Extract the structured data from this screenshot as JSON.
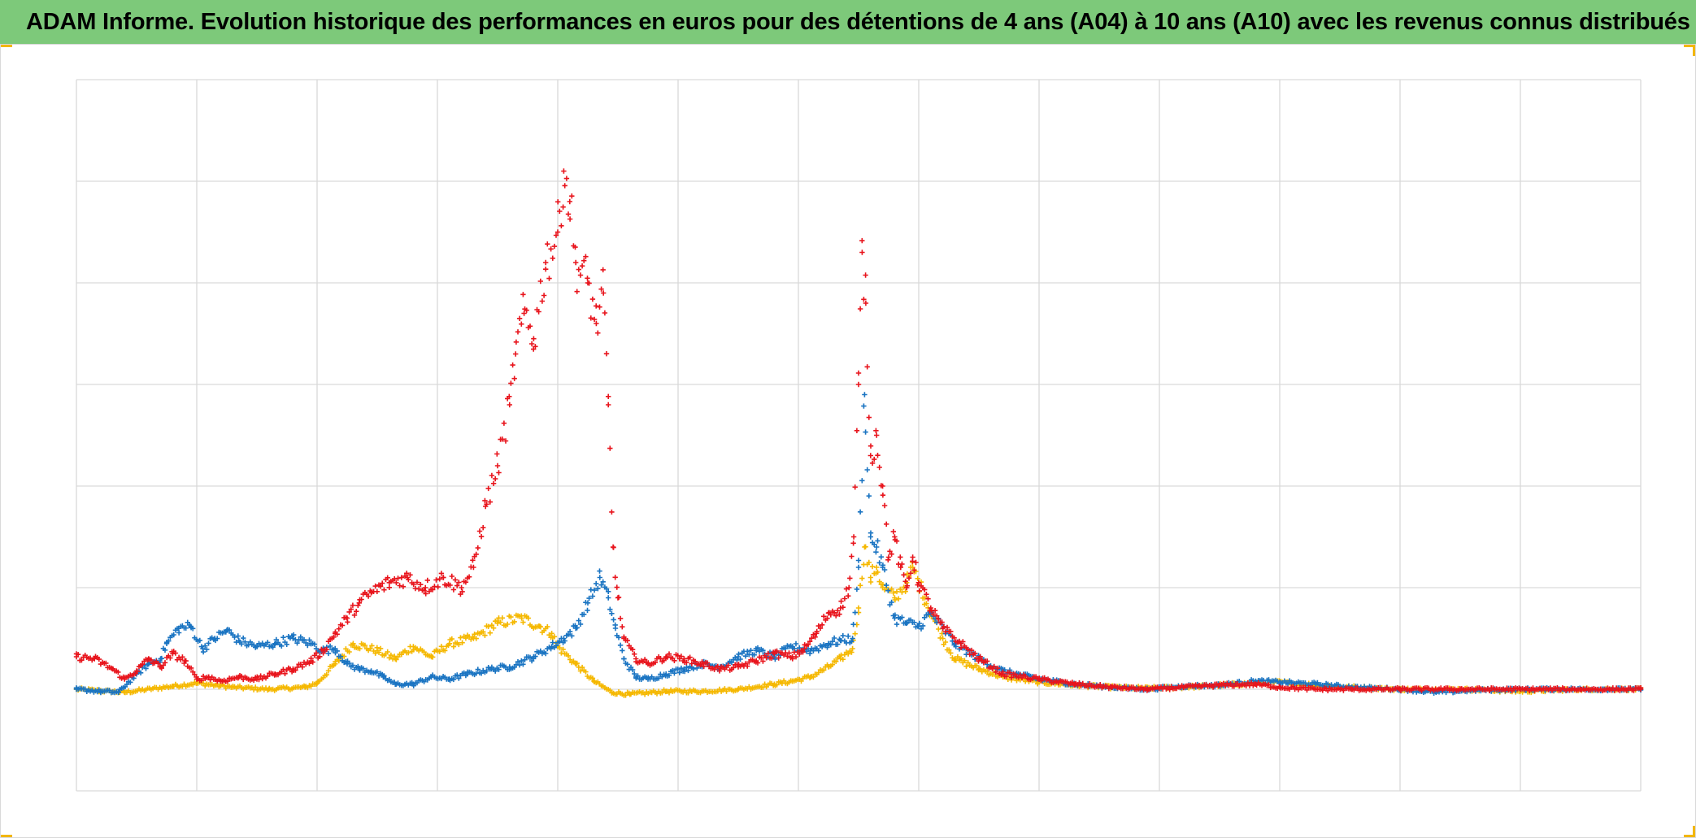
{
  "title": "ADAM Informe. Evolution historique des performances en euros pour des détentions de 4 ans (A04) à 10 ans (A10) avec les revenus connus distribués",
  "colors": {
    "title_bar": "#7dc97a",
    "grid": "#d9d9d9",
    "series_yellow": "#f5b800",
    "series_blue": "#1a74c2",
    "series_red": "#e8141c",
    "corner_accent": "#f2b705"
  },
  "chart_data": {
    "type": "scatter",
    "marker": "plus",
    "title": "ADAM Informe. Evolution historique des performances en euros pour des détentions de 4 ans (A04) à 10 ans (A10) avec les revenus connus distribués",
    "xlabel": "",
    "ylabel": "",
    "xlim": [
      0,
      13
    ],
    "ylim": [
      -1,
      6
    ],
    "x_gridlines": 13,
    "y_gridlines": 7,
    "grid": true,
    "legend": "none",
    "tick_labels": "none",
    "series": [
      {
        "color": "#f5b800",
        "points": [
          [
            0,
            0
          ],
          [
            0.4,
            -0.03
          ],
          [
            0.8,
            0.03
          ],
          [
            1.0,
            0.06
          ],
          [
            1.3,
            0.02
          ],
          [
            1.6,
            0.0
          ],
          [
            1.9,
            0.02
          ],
          [
            2.0,
            0.06
          ],
          [
            2.15,
            0.25
          ],
          [
            2.3,
            0.45
          ],
          [
            2.5,
            0.38
          ],
          [
            2.65,
            0.3
          ],
          [
            2.8,
            0.42
          ],
          [
            2.95,
            0.32
          ],
          [
            3.1,
            0.45
          ],
          [
            3.3,
            0.5
          ],
          [
            3.5,
            0.65
          ],
          [
            3.7,
            0.7
          ],
          [
            3.85,
            0.62
          ],
          [
            3.95,
            0.55
          ],
          [
            4.0,
            0.42
          ],
          [
            4.15,
            0.25
          ],
          [
            4.3,
            0.08
          ],
          [
            4.45,
            -0.03
          ],
          [
            4.6,
            -0.05
          ],
          [
            4.9,
            -0.02
          ],
          [
            5.2,
            -0.02
          ],
          [
            5.5,
            0.0
          ],
          [
            5.8,
            0.05
          ],
          [
            5.95,
            0.08
          ],
          [
            6.1,
            0.12
          ],
          [
            6.25,
            0.22
          ],
          [
            6.35,
            0.3
          ],
          [
            6.45,
            0.4
          ],
          [
            6.5,
            0.8
          ],
          [
            6.55,
            1.4
          ],
          [
            6.6,
            1.1
          ],
          [
            6.65,
            1.2
          ],
          [
            6.7,
            1.0
          ],
          [
            6.8,
            0.9
          ],
          [
            6.9,
            1.05
          ],
          [
            6.95,
            1.2
          ],
          [
            7.0,
            1.05
          ],
          [
            7.05,
            0.9
          ],
          [
            7.1,
            0.75
          ],
          [
            7.2,
            0.5
          ],
          [
            7.3,
            0.3
          ],
          [
            7.5,
            0.2
          ],
          [
            7.7,
            0.12
          ],
          [
            8.0,
            0.07
          ],
          [
            8.3,
            0.04
          ],
          [
            8.6,
            0.02
          ],
          [
            8.9,
            0.01
          ],
          [
            9.2,
            0.02
          ],
          [
            9.5,
            0.04
          ],
          [
            9.8,
            0.06
          ],
          [
            10.0,
            0.07
          ],
          [
            10.3,
            0.04
          ],
          [
            10.6,
            0.02
          ],
          [
            11.0,
            0.0
          ],
          [
            11.5,
            0.0
          ],
          [
            12.0,
            -0.02
          ],
          [
            12.5,
            0.0
          ],
          [
            13.0,
            0.0
          ]
        ]
      },
      {
        "color": "#1a74c2",
        "points": [
          [
            0,
            0.0
          ],
          [
            0.2,
            -0.02
          ],
          [
            0.35,
            -0.03
          ],
          [
            0.5,
            0.15
          ],
          [
            0.6,
            0.25
          ],
          [
            0.7,
            0.3
          ],
          [
            0.75,
            0.45
          ],
          [
            0.85,
            0.6
          ],
          [
            0.95,
            0.62
          ],
          [
            1.05,
            0.4
          ],
          [
            1.15,
            0.5
          ],
          [
            1.25,
            0.58
          ],
          [
            1.35,
            0.48
          ],
          [
            1.5,
            0.42
          ],
          [
            1.65,
            0.45
          ],
          [
            1.8,
            0.5
          ],
          [
            1.95,
            0.45
          ],
          [
            2.05,
            0.38
          ],
          [
            2.15,
            0.4
          ],
          [
            2.25,
            0.25
          ],
          [
            2.35,
            0.2
          ],
          [
            2.45,
            0.18
          ],
          [
            2.55,
            0.12
          ],
          [
            2.65,
            0.05
          ],
          [
            2.8,
            0.05
          ],
          [
            2.95,
            0.12
          ],
          [
            3.1,
            0.1
          ],
          [
            3.25,
            0.15
          ],
          [
            3.45,
            0.2
          ],
          [
            3.6,
            0.22
          ],
          [
            3.8,
            0.32
          ],
          [
            3.95,
            0.42
          ],
          [
            4.05,
            0.5
          ],
          [
            4.15,
            0.6
          ],
          [
            4.25,
            0.85
          ],
          [
            4.35,
            1.1
          ],
          [
            4.42,
            0.9
          ],
          [
            4.48,
            0.6
          ],
          [
            4.55,
            0.3
          ],
          [
            4.65,
            0.12
          ],
          [
            4.75,
            0.1
          ],
          [
            4.9,
            0.15
          ],
          [
            5.05,
            0.2
          ],
          [
            5.2,
            0.25
          ],
          [
            5.35,
            0.22
          ],
          [
            5.5,
            0.32
          ],
          [
            5.65,
            0.38
          ],
          [
            5.8,
            0.32
          ],
          [
            5.95,
            0.42
          ],
          [
            6.1,
            0.38
          ],
          [
            6.25,
            0.45
          ],
          [
            6.35,
            0.48
          ],
          [
            6.45,
            0.5
          ],
          [
            6.5,
            1.2
          ],
          [
            6.55,
            2.9
          ],
          [
            6.6,
            1.5
          ],
          [
            6.65,
            1.4
          ],
          [
            6.7,
            1.2
          ],
          [
            6.8,
            0.7
          ],
          [
            6.9,
            0.65
          ],
          [
            7.0,
            0.62
          ],
          [
            7.1,
            0.75
          ],
          [
            7.2,
            0.6
          ],
          [
            7.3,
            0.45
          ],
          [
            7.5,
            0.3
          ],
          [
            7.7,
            0.18
          ],
          [
            8.0,
            0.1
          ],
          [
            8.3,
            0.05
          ],
          [
            8.6,
            0.02
          ],
          [
            8.9,
            0.0
          ],
          [
            9.2,
            0.03
          ],
          [
            9.5,
            0.04
          ],
          [
            9.8,
            0.08
          ],
          [
            10.0,
            0.07
          ],
          [
            10.3,
            0.05
          ],
          [
            10.6,
            0.02
          ],
          [
            11.0,
            0.0
          ],
          [
            11.3,
            -0.03
          ],
          [
            11.6,
            -0.01
          ],
          [
            12.0,
            0.0
          ],
          [
            12.5,
            0.0
          ],
          [
            13.0,
            0.0
          ]
        ]
      },
      {
        "color": "#e8141c",
        "points": [
          [
            0,
            0.32
          ],
          [
            0.15,
            0.3
          ],
          [
            0.3,
            0.2
          ],
          [
            0.4,
            0.1
          ],
          [
            0.5,
            0.18
          ],
          [
            0.6,
            0.3
          ],
          [
            0.7,
            0.22
          ],
          [
            0.8,
            0.35
          ],
          [
            0.9,
            0.28
          ],
          [
            1.0,
            0.1
          ],
          [
            1.1,
            0.12
          ],
          [
            1.2,
            0.08
          ],
          [
            1.35,
            0.12
          ],
          [
            1.5,
            0.1
          ],
          [
            1.65,
            0.15
          ],
          [
            1.8,
            0.2
          ],
          [
            1.95,
            0.28
          ],
          [
            2.05,
            0.38
          ],
          [
            2.15,
            0.55
          ],
          [
            2.25,
            0.7
          ],
          [
            2.35,
            0.85
          ],
          [
            2.45,
            0.95
          ],
          [
            2.6,
            1.05
          ],
          [
            2.75,
            1.1
          ],
          [
            2.9,
            1.0
          ],
          [
            3.05,
            1.1
          ],
          [
            3.2,
            1.0
          ],
          [
            3.3,
            1.2
          ],
          [
            3.4,
            1.8
          ],
          [
            3.5,
            2.2
          ],
          [
            3.6,
            2.8
          ],
          [
            3.65,
            3.3
          ],
          [
            3.72,
            3.7
          ],
          [
            3.8,
            3.45
          ],
          [
            3.9,
            4.2
          ],
          [
            4.0,
            4.5
          ],
          [
            4.05,
            5.1
          ],
          [
            4.1,
            4.8
          ],
          [
            4.15,
            4.2
          ],
          [
            4.25,
            4.0
          ],
          [
            4.32,
            3.6
          ],
          [
            4.38,
            3.9
          ],
          [
            4.42,
            2.8
          ],
          [
            4.46,
            1.4
          ],
          [
            4.5,
            0.9
          ],
          [
            4.55,
            0.5
          ],
          [
            4.65,
            0.3
          ],
          [
            4.75,
            0.25
          ],
          [
            4.9,
            0.32
          ],
          [
            5.05,
            0.3
          ],
          [
            5.2,
            0.25
          ],
          [
            5.35,
            0.2
          ],
          [
            5.5,
            0.22
          ],
          [
            5.65,
            0.28
          ],
          [
            5.8,
            0.35
          ],
          [
            5.95,
            0.32
          ],
          [
            6.05,
            0.4
          ],
          [
            6.15,
            0.55
          ],
          [
            6.25,
            0.75
          ],
          [
            6.35,
            0.8
          ],
          [
            6.42,
            1.0
          ],
          [
            6.46,
            1.5
          ],
          [
            6.5,
            3.0
          ],
          [
            6.53,
            4.3
          ],
          [
            6.56,
            3.8
          ],
          [
            6.6,
            2.3
          ],
          [
            6.65,
            2.5
          ],
          [
            6.7,
            2.0
          ],
          [
            6.75,
            1.3
          ],
          [
            6.8,
            1.5
          ],
          [
            6.85,
            1.2
          ],
          [
            6.9,
            1.0
          ],
          [
            6.95,
            1.3
          ],
          [
            7.0,
            1.05
          ],
          [
            7.1,
            0.8
          ],
          [
            7.2,
            0.6
          ],
          [
            7.35,
            0.45
          ],
          [
            7.5,
            0.3
          ],
          [
            7.7,
            0.15
          ],
          [
            8.0,
            0.1
          ],
          [
            8.3,
            0.05
          ],
          [
            8.6,
            0.02
          ],
          [
            8.9,
            0.0
          ],
          [
            9.2,
            0.02
          ],
          [
            9.5,
            0.04
          ],
          [
            9.8,
            0.05
          ],
          [
            10.0,
            0.02
          ],
          [
            10.3,
            0.0
          ],
          [
            10.6,
            0.0
          ],
          [
            11.0,
            0.0
          ],
          [
            11.5,
            0.0
          ],
          [
            12.0,
            0.0
          ],
          [
            12.5,
            0.0
          ],
          [
            13.0,
            0.0
          ]
        ]
      }
    ]
  }
}
